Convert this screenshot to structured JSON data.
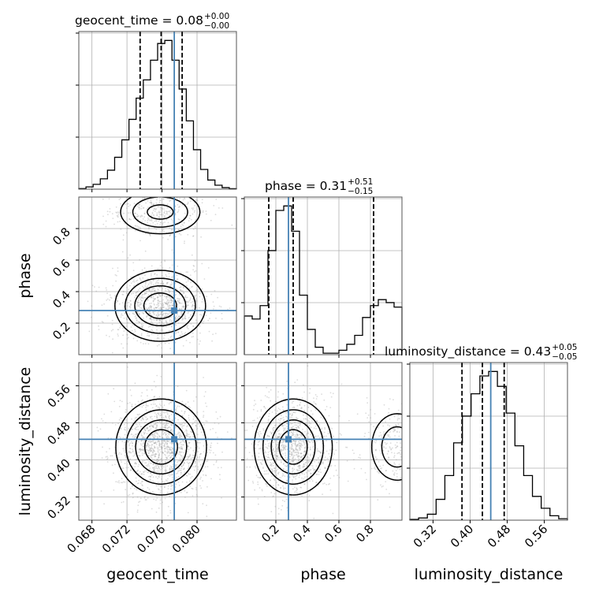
{
  "chart_data": {
    "type": "corner",
    "parameters": [
      {
        "key": "geocent_time",
        "axis_label": "geocent_time",
        "title_name": "geocent_time = 0.08",
        "title_sup": "+0.00",
        "title_sub": "−0.00",
        "range": [
          0.0665,
          0.0845
        ],
        "ticks": [
          0.068,
          0.072,
          0.076,
          0.08
        ],
        "tick_labels": [
          "0.068",
          "0.072",
          "0.076",
          "0.080"
        ],
        "quantiles": [
          0.0735,
          0.0759,
          0.0783
        ],
        "truth": 0.0774,
        "hist_bins": [
          0.4,
          1.5,
          3.2,
          6.8,
          12.5,
          21.0,
          32.5,
          46.0,
          60.0,
          72.0,
          85.0,
          96.0,
          98.0,
          85.0,
          66.0,
          45.0,
          26.0,
          13.0,
          6.0,
          2.6,
          1.0,
          0.3
        ]
      },
      {
        "key": "phase",
        "axis_label": "phase",
        "title_name": "phase = 0.31",
        "title_sup": "+0.51",
        "title_sub": "−0.15",
        "range": [
          0.0,
          1.0
        ],
        "ticks": [
          0.2,
          0.4,
          0.6,
          0.8
        ],
        "tick_labels": [
          "0.2",
          "0.4",
          "0.6",
          "0.8"
        ],
        "quantiles": [
          0.155,
          0.31,
          0.82
        ],
        "truth": 0.28,
        "hist_bins": [
          26,
          24,
          33,
          70,
          97,
          100,
          83,
          40,
          17,
          5,
          1,
          1,
          3,
          7,
          13,
          25,
          33,
          37,
          35,
          32
        ]
      },
      {
        "key": "luminosity_distance",
        "axis_label": "luminosity_distance",
        "title_name": "luminosity_distance = 0.43",
        "title_sup": "+0.05",
        "title_sub": "−0.05",
        "range": [
          0.27,
          0.61
        ],
        "ticks": [
          0.32,
          0.4,
          0.48,
          0.56
        ],
        "tick_labels": [
          "0.32",
          "0.40",
          "0.48",
          "0.56"
        ],
        "quantiles": [
          0.3825,
          0.4265,
          0.4735
        ],
        "truth": 0.4445,
        "hist_bins": [
          0.5,
          1.5,
          4.0,
          14.0,
          30.0,
          52.0,
          70.0,
          85.0,
          97.0,
          100.0,
          90.0,
          72.0,
          50.0,
          30.0,
          16.0,
          8.0,
          3.0,
          1.0
        ]
      }
    ],
    "density_panels": [
      {
        "x_param": 0,
        "y_param": 1,
        "modes": [
          {
            "cx": 0.0758,
            "cy": 0.31,
            "sx": 0.0023,
            "sy": 0.1,
            "weight": 0.72
          },
          {
            "cx": 0.0758,
            "cy": 0.905,
            "sx": 0.0023,
            "sy": 0.07,
            "weight": 0.28
          }
        ]
      },
      {
        "x_param": 0,
        "y_param": 2,
        "modes": [
          {
            "cx": 0.0759,
            "cy": 0.428,
            "sx": 0.0023,
            "sy": 0.046,
            "weight": 1.0
          }
        ]
      },
      {
        "x_param": 1,
        "y_param": 2,
        "modes": [
          {
            "cx": 0.31,
            "cy": 0.428,
            "sx": 0.11,
            "sy": 0.046,
            "weight": 0.78
          },
          {
            "cx": 0.97,
            "cy": 0.428,
            "sx": 0.09,
            "sy": 0.04,
            "weight": 0.22
          }
        ]
      }
    ],
    "grid": true,
    "colors": {
      "truth": "#4682b4",
      "lines": "#000000",
      "grid": "#b0b0b0",
      "scatter": "#9a9a9a"
    }
  }
}
